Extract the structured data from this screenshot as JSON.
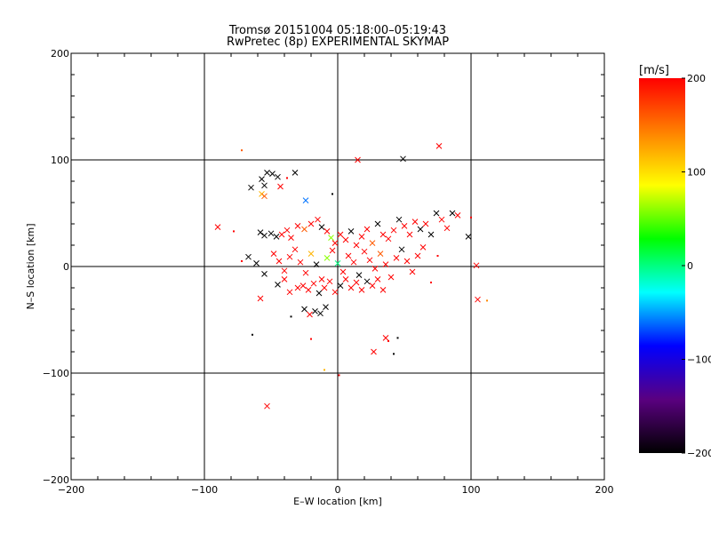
{
  "header": {
    "title": "Tromsø 20151004 05:18:00–05:19:43",
    "subtitle": "RwPretec (8p) EXPERIMENTAL SKYMAP"
  },
  "chart_data": {
    "type": "scatter",
    "title": "Tromsø 20151004 05:18:00–05:19:43",
    "subtitle": "RwPretec (8p) EXPERIMENTAL SKYMAP",
    "xlabel": "E–W location [km]",
    "ylabel": "N–S location [km]",
    "xlim": [
      -200,
      200
    ],
    "ylim": [
      -200,
      200
    ],
    "xticks": [
      -200,
      -100,
      0,
      100,
      200
    ],
    "yticks": [
      -200,
      -100,
      0,
      100,
      200
    ],
    "xtick_labels": [
      "−200",
      "−100",
      "0",
      "100",
      "200"
    ],
    "ytick_labels": [
      "−200",
      "−100",
      "0",
      "100",
      "200"
    ],
    "grid": true,
    "colorbar": {
      "label": "[m/s]",
      "range": [
        -200,
        200
      ],
      "ticks": [
        200,
        100,
        0,
        -100,
        -200
      ],
      "tick_labels": [
        "200",
        "100",
        "0",
        "−100",
        "−200"
      ],
      "colors": [
        "#000000",
        "#5a0080",
        "#0000ff",
        "#00ffff",
        "#00ff00",
        "#ffff00",
        "#ff8000",
        "#ff0000"
      ]
    },
    "markers": {
      "x": "velocity cross",
      "dot": "velocity dot"
    },
    "points": [
      {
        "x": 76,
        "y": 113,
        "v": 200,
        "m": "x"
      },
      {
        "x": 15,
        "y": 100,
        "v": 200,
        "m": "x"
      },
      {
        "x": 49,
        "y": 101,
        "v": -200,
        "m": "x"
      },
      {
        "x": -72,
        "y": 109,
        "v": 160,
        "m": "d"
      },
      {
        "x": -57,
        "y": 82,
        "v": -200,
        "m": "x"
      },
      {
        "x": -53,
        "y": 88,
        "v": -200,
        "m": "x"
      },
      {
        "x": -49,
        "y": 87,
        "v": -200,
        "m": "x"
      },
      {
        "x": -45,
        "y": 84,
        "v": -200,
        "m": "x"
      },
      {
        "x": -32,
        "y": 88,
        "v": -200,
        "m": "x"
      },
      {
        "x": -55,
        "y": 76,
        "v": -200,
        "m": "x"
      },
      {
        "x": -65,
        "y": 74,
        "v": -200,
        "m": "x"
      },
      {
        "x": -57,
        "y": 68,
        "v": 120,
        "m": "x"
      },
      {
        "x": -55,
        "y": 66,
        "v": 160,
        "m": "x"
      },
      {
        "x": -43,
        "y": 75,
        "v": 200,
        "m": "x"
      },
      {
        "x": -38,
        "y": 83,
        "v": 200,
        "m": "d"
      },
      {
        "x": -24,
        "y": 62,
        "v": -60,
        "m": "x"
      },
      {
        "x": -4,
        "y": 68,
        "v": -200,
        "m": "d"
      },
      {
        "x": -90,
        "y": 37,
        "v": 200,
        "m": "x"
      },
      {
        "x": -78,
        "y": 33,
        "v": 200,
        "m": "d"
      },
      {
        "x": -58,
        "y": 32,
        "v": -200,
        "m": "x"
      },
      {
        "x": -55,
        "y": 29,
        "v": -200,
        "m": "x"
      },
      {
        "x": -50,
        "y": 31,
        "v": -200,
        "m": "x"
      },
      {
        "x": -46,
        "y": 28,
        "v": -200,
        "m": "x"
      },
      {
        "x": -42,
        "y": 30,
        "v": 200,
        "m": "x"
      },
      {
        "x": -38,
        "y": 34,
        "v": 200,
        "m": "x"
      },
      {
        "x": -35,
        "y": 27,
        "v": 200,
        "m": "x"
      },
      {
        "x": -30,
        "y": 38,
        "v": 200,
        "m": "x"
      },
      {
        "x": -25,
        "y": 35,
        "v": 160,
        "m": "x"
      },
      {
        "x": -20,
        "y": 40,
        "v": 200,
        "m": "x"
      },
      {
        "x": -15,
        "y": 44,
        "v": 200,
        "m": "x"
      },
      {
        "x": -12,
        "y": 37,
        "v": -200,
        "m": "x"
      },
      {
        "x": -8,
        "y": 33,
        "v": 200,
        "m": "x"
      },
      {
        "x": -5,
        "y": 27,
        "v": 60,
        "m": "x"
      },
      {
        "x": -2,
        "y": 22,
        "v": 200,
        "m": "x"
      },
      {
        "x": 2,
        "y": 30,
        "v": 200,
        "m": "x"
      },
      {
        "x": 6,
        "y": 25,
        "v": 200,
        "m": "x"
      },
      {
        "x": 10,
        "y": 33,
        "v": -200,
        "m": "x"
      },
      {
        "x": 14,
        "y": 20,
        "v": 200,
        "m": "x"
      },
      {
        "x": 18,
        "y": 28,
        "v": 200,
        "m": "x"
      },
      {
        "x": 22,
        "y": 35,
        "v": 200,
        "m": "x"
      },
      {
        "x": 26,
        "y": 22,
        "v": 160,
        "m": "x"
      },
      {
        "x": 30,
        "y": 40,
        "v": -200,
        "m": "x"
      },
      {
        "x": 34,
        "y": 30,
        "v": 200,
        "m": "x"
      },
      {
        "x": 38,
        "y": 26,
        "v": 200,
        "m": "x"
      },
      {
        "x": 42,
        "y": 34,
        "v": 200,
        "m": "x"
      },
      {
        "x": 46,
        "y": 44,
        "v": -200,
        "m": "x"
      },
      {
        "x": 50,
        "y": 38,
        "v": 200,
        "m": "x"
      },
      {
        "x": 54,
        "y": 30,
        "v": 200,
        "m": "x"
      },
      {
        "x": 58,
        "y": 42,
        "v": 200,
        "m": "x"
      },
      {
        "x": 62,
        "y": 35,
        "v": -200,
        "m": "x"
      },
      {
        "x": 66,
        "y": 40,
        "v": 200,
        "m": "x"
      },
      {
        "x": 70,
        "y": 30,
        "v": -200,
        "m": "x"
      },
      {
        "x": 74,
        "y": 50,
        "v": -200,
        "m": "x"
      },
      {
        "x": 78,
        "y": 44,
        "v": 200,
        "m": "x"
      },
      {
        "x": 82,
        "y": 36,
        "v": 200,
        "m": "x"
      },
      {
        "x": 86,
        "y": 50,
        "v": -200,
        "m": "x"
      },
      {
        "x": 90,
        "y": 48,
        "v": 200,
        "m": "x"
      },
      {
        "x": 98,
        "y": 28,
        "v": -200,
        "m": "x"
      },
      {
        "x": 100,
        "y": 46,
        "v": 200,
        "m": "d"
      },
      {
        "x": 104,
        "y": 1,
        "v": 200,
        "m": "x"
      },
      {
        "x": 105,
        "y": -31,
        "v": 200,
        "m": "x"
      },
      {
        "x": 112,
        "y": -32,
        "v": 140,
        "m": "d"
      },
      {
        "x": -67,
        "y": 9,
        "v": -200,
        "m": "x"
      },
      {
        "x": -61,
        "y": 3,
        "v": -200,
        "m": "x"
      },
      {
        "x": -55,
        "y": -7,
        "v": -200,
        "m": "x"
      },
      {
        "x": -48,
        "y": 12,
        "v": 200,
        "m": "x"
      },
      {
        "x": -44,
        "y": 5,
        "v": 200,
        "m": "x"
      },
      {
        "x": -40,
        "y": -4,
        "v": 200,
        "m": "x"
      },
      {
        "x": -36,
        "y": 9,
        "v": 200,
        "m": "x"
      },
      {
        "x": -32,
        "y": 16,
        "v": 200,
        "m": "x"
      },
      {
        "x": -28,
        "y": 4,
        "v": 200,
        "m": "x"
      },
      {
        "x": -24,
        "y": -6,
        "v": 200,
        "m": "x"
      },
      {
        "x": -20,
        "y": 12,
        "v": 120,
        "m": "x"
      },
      {
        "x": -16,
        "y": 2,
        "v": -200,
        "m": "x"
      },
      {
        "x": -12,
        "y": -12,
        "v": 200,
        "m": "x"
      },
      {
        "x": -8,
        "y": 8,
        "v": 60,
        "m": "x"
      },
      {
        "x": -4,
        "y": 15,
        "v": 200,
        "m": "x"
      },
      {
        "x": 0,
        "y": 3,
        "v": 0,
        "m": "x"
      },
      {
        "x": 4,
        "y": -5,
        "v": 200,
        "m": "x"
      },
      {
        "x": 8,
        "y": 10,
        "v": 200,
        "m": "x"
      },
      {
        "x": 12,
        "y": 4,
        "v": 200,
        "m": "x"
      },
      {
        "x": 16,
        "y": -8,
        "v": -200,
        "m": "x"
      },
      {
        "x": 20,
        "y": 14,
        "v": 200,
        "m": "x"
      },
      {
        "x": 24,
        "y": 6,
        "v": 200,
        "m": "x"
      },
      {
        "x": 28,
        "y": -2,
        "v": 200,
        "m": "x"
      },
      {
        "x": 32,
        "y": 12,
        "v": 160,
        "m": "x"
      },
      {
        "x": 36,
        "y": 2,
        "v": 200,
        "m": "x"
      },
      {
        "x": 40,
        "y": -10,
        "v": 200,
        "m": "x"
      },
      {
        "x": 44,
        "y": 8,
        "v": 200,
        "m": "x"
      },
      {
        "x": 48,
        "y": 16,
        "v": -200,
        "m": "x"
      },
      {
        "x": 52,
        "y": 5,
        "v": 200,
        "m": "x"
      },
      {
        "x": 56,
        "y": -5,
        "v": 200,
        "m": "x"
      },
      {
        "x": 60,
        "y": 10,
        "v": 200,
        "m": "x"
      },
      {
        "x": 64,
        "y": 18,
        "v": 200,
        "m": "x"
      },
      {
        "x": -58,
        "y": -30,
        "v": 200,
        "m": "x"
      },
      {
        "x": -45,
        "y": -17,
        "v": -200,
        "m": "x"
      },
      {
        "x": -40,
        "y": -12,
        "v": 200,
        "m": "x"
      },
      {
        "x": -36,
        "y": -24,
        "v": 200,
        "m": "x"
      },
      {
        "x": -30,
        "y": -20,
        "v": 200,
        "m": "x"
      },
      {
        "x": -26,
        "y": -18,
        "v": 200,
        "m": "x"
      },
      {
        "x": -22,
        "y": -22,
        "v": 200,
        "m": "x"
      },
      {
        "x": -18,
        "y": -16,
        "v": 200,
        "m": "x"
      },
      {
        "x": -14,
        "y": -25,
        "v": -200,
        "m": "x"
      },
      {
        "x": -10,
        "y": -20,
        "v": 200,
        "m": "x"
      },
      {
        "x": -6,
        "y": -14,
        "v": 200,
        "m": "x"
      },
      {
        "x": -2,
        "y": -24,
        "v": 200,
        "m": "x"
      },
      {
        "x": 2,
        "y": -18,
        "v": -200,
        "m": "x"
      },
      {
        "x": 6,
        "y": -12,
        "v": 200,
        "m": "x"
      },
      {
        "x": 10,
        "y": -20,
        "v": 200,
        "m": "x"
      },
      {
        "x": 14,
        "y": -15,
        "v": 200,
        "m": "x"
      },
      {
        "x": 18,
        "y": -22,
        "v": 200,
        "m": "x"
      },
      {
        "x": 22,
        "y": -14,
        "v": -200,
        "m": "x"
      },
      {
        "x": 26,
        "y": -18,
        "v": 200,
        "m": "x"
      },
      {
        "x": 30,
        "y": -12,
        "v": 200,
        "m": "x"
      },
      {
        "x": 34,
        "y": -22,
        "v": 200,
        "m": "x"
      },
      {
        "x": -25,
        "y": -40,
        "v": -200,
        "m": "x"
      },
      {
        "x": -21,
        "y": -45,
        "v": 200,
        "m": "x"
      },
      {
        "x": -17,
        "y": -42,
        "v": -200,
        "m": "x"
      },
      {
        "x": -13,
        "y": -44,
        "v": -200,
        "m": "x"
      },
      {
        "x": -9,
        "y": -38,
        "v": -200,
        "m": "x"
      },
      {
        "x": -35,
        "y": -47,
        "v": -200,
        "m": "d"
      },
      {
        "x": -64,
        "y": -64,
        "v": -200,
        "m": "d"
      },
      {
        "x": -20,
        "y": -68,
        "v": 200,
        "m": "d"
      },
      {
        "x": 36,
        "y": -67,
        "v": 200,
        "m": "x"
      },
      {
        "x": 38,
        "y": -70,
        "v": 200,
        "m": "d"
      },
      {
        "x": 45,
        "y": -67,
        "v": -200,
        "m": "d"
      },
      {
        "x": 42,
        "y": -82,
        "v": -200,
        "m": "d"
      },
      {
        "x": 27,
        "y": -80,
        "v": 200,
        "m": "x"
      },
      {
        "x": -10,
        "y": -97,
        "v": 120,
        "m": "d"
      },
      {
        "x": 1,
        "y": -102,
        "v": 200,
        "m": "d"
      },
      {
        "x": -53,
        "y": -131,
        "v": 200,
        "m": "x"
      },
      {
        "x": -72,
        "y": 5,
        "v": 200,
        "m": "d"
      },
      {
        "x": 70,
        "y": -15,
        "v": 200,
        "m": "d"
      },
      {
        "x": 75,
        "y": 10,
        "v": 200,
        "m": "d"
      }
    ]
  }
}
